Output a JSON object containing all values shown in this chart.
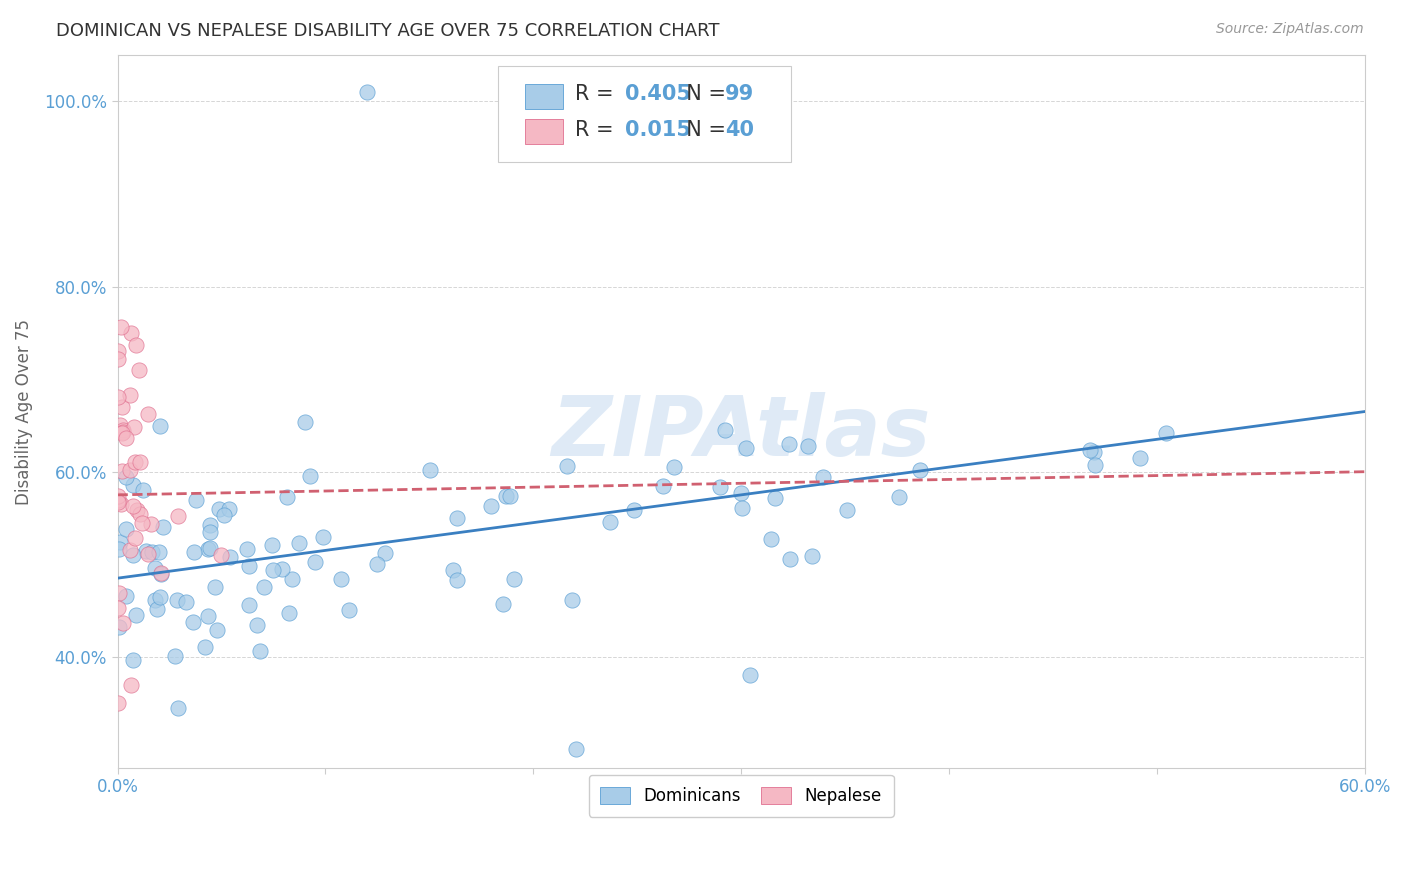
{
  "title": "DOMINICAN VS NEPALESE DISABILITY AGE OVER 75 CORRELATION CHART",
  "source": "Source: ZipAtlas.com",
  "ylabel": "Disability Age Over 75",
  "xlim": [
    0.0,
    0.6
  ],
  "ylim": [
    0.28,
    1.05
  ],
  "xtick_positions": [
    0.0,
    0.1,
    0.2,
    0.3,
    0.4,
    0.5,
    0.6
  ],
  "xtick_labels": [
    "0.0%",
    "",
    "",
    "",
    "",
    "",
    "60.0%"
  ],
  "ytick_positions": [
    0.4,
    0.6,
    0.8,
    1.0
  ],
  "ytick_labels": [
    "40.0%",
    "60.0%",
    "80.0%",
    "100.0%"
  ],
  "dominican_fill": "#a8cce8",
  "dominican_edge": "#5a9fd4",
  "nepalese_fill": "#f5b8c4",
  "nepalese_edge": "#e07090",
  "dominican_line_color": "#3a7fc1",
  "nepalese_line_color": "#d06070",
  "r_dominican": 0.405,
  "n_dominican": 99,
  "r_nepalese": 0.015,
  "n_nepalese": 40,
  "background_color": "#ffffff",
  "grid_color": "#cccccc",
  "watermark": "ZIPAtlas",
  "watermark_color": "#c5daf0",
  "title_color": "#333333",
  "label_color": "#5a9fd4",
  "legend_label1": "Dominicans",
  "legend_label2": "Nepalese"
}
